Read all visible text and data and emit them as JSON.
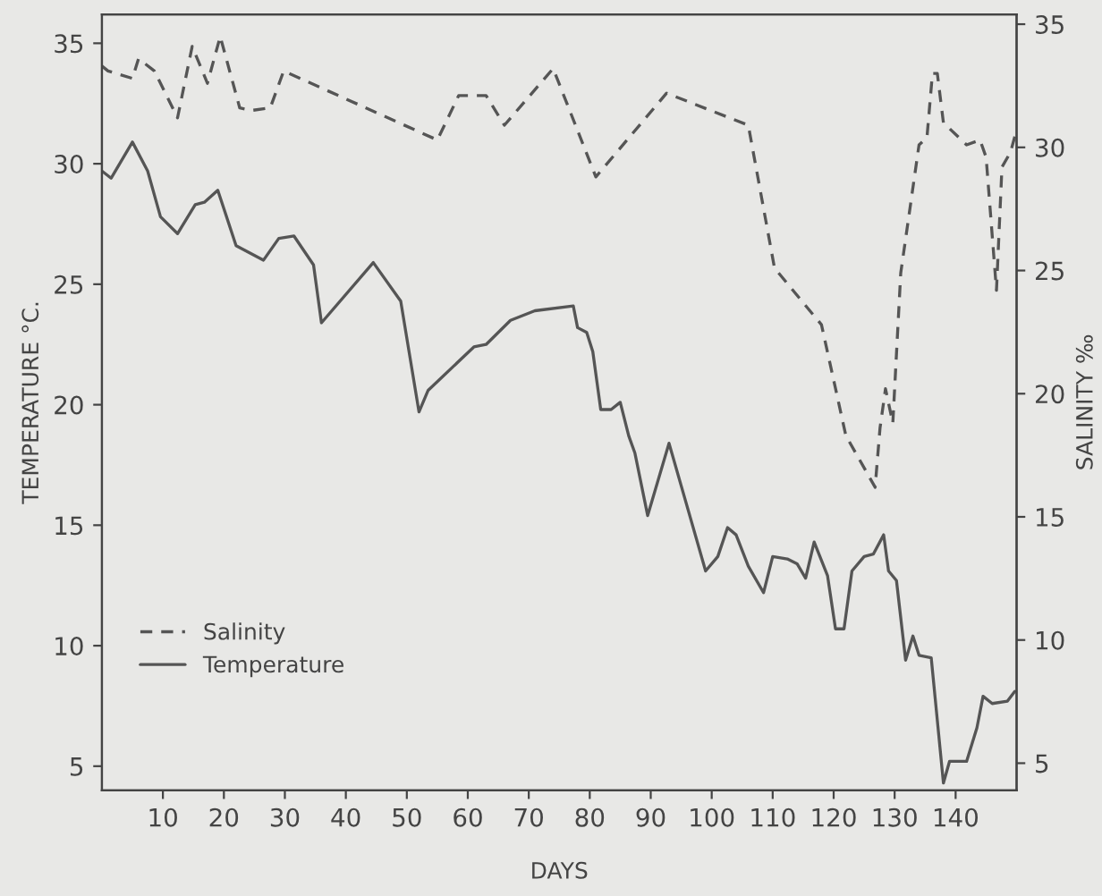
{
  "chart_data": {
    "type": "line",
    "xlabel": "DAYS",
    "ylabel": "TEMPERATURE °C.",
    "y2label": "SALINITY ‰",
    "xlim": [
      0,
      150
    ],
    "xticks": [
      10,
      20,
      30,
      40,
      50,
      60,
      70,
      80,
      90,
      100,
      110,
      120,
      130,
      140
    ],
    "ylim": [
      4,
      36.2
    ],
    "yticks": [
      5,
      10,
      15,
      20,
      25,
      30,
      35
    ],
    "y2lim": [
      3.9,
      35.4
    ],
    "y2ticks": [
      5,
      10,
      15,
      20,
      25,
      30,
      35
    ],
    "legend": "lower left",
    "grid": false,
    "series": [
      {
        "name": "Salinity",
        "color": "#555555",
        "line_style": "dashed",
        "axis": "y2",
        "x": [
          0,
          1,
          5,
          6,
          8.6,
          12.4,
          14.8,
          17.3,
          19.4,
          22.6,
          24.6,
          27.6,
          29.8,
          55,
          58.5,
          63,
          66,
          74,
          81,
          92.6,
          106,
          110.3,
          118,
          122,
          126.8,
          127.6,
          128.5,
          129.7,
          131,
          134,
          135.3,
          136.2,
          137,
          138,
          141.8,
          144,
          145,
          146.7,
          147.6,
          149,
          150
        ],
        "values": [
          33.3,
          33.1,
          32.8,
          33.6,
          33.1,
          31.2,
          34.1,
          32.6,
          34.5,
          31.6,
          31.5,
          31.6,
          33.1,
          30.3,
          32.1,
          32.1,
          30.9,
          33.2,
          28.8,
          32.2,
          30.9,
          25.1,
          22.8,
          18.3,
          16.2,
          18.6,
          20.2,
          18.8,
          24.9,
          30.1,
          30.4,
          33.0,
          33.0,
          31.0,
          30.1,
          30.3,
          29.6,
          24.2,
          29.2,
          29.8,
          30.7
        ]
      },
      {
        "name": "Temperature",
        "color": "#555555",
        "line_style": "solid",
        "axis": "y",
        "x": [
          0,
          1.5,
          5,
          7.5,
          9.6,
          12.4,
          15.3,
          16.8,
          19,
          22,
          26.5,
          29,
          31.5,
          34.7,
          36,
          44.5,
          49,
          52,
          53.5,
          61,
          63,
          67,
          71,
          77.3,
          78,
          79.5,
          80.5,
          81.8,
          83.5,
          85,
          86.4,
          87.4,
          89.5,
          93,
          99,
          101,
          102.6,
          104,
          106,
          108.5,
          110,
          112.4,
          114,
          115.4,
          116.8,
          119,
          120.3,
          121.7,
          123,
          125,
          126.5,
          128.2,
          129,
          130.3,
          131.8,
          133,
          134,
          136,
          138,
          139,
          141.8,
          143.5,
          144.5,
          146,
          148.5,
          149.7
        ],
        "values": [
          29.7,
          29.4,
          30.9,
          29.7,
          27.8,
          27.1,
          28.3,
          28.4,
          28.9,
          26.6,
          26.0,
          26.9,
          27.0,
          25.8,
          23.4,
          25.9,
          24.3,
          19.7,
          20.6,
          22.4,
          22.5,
          23.5,
          23.9,
          24.1,
          23.2,
          23.0,
          22.2,
          19.8,
          19.8,
          20.1,
          18.7,
          18.0,
          15.4,
          18.4,
          13.1,
          13.7,
          14.9,
          14.6,
          13.3,
          12.2,
          13.7,
          13.6,
          13.4,
          12.8,
          14.3,
          12.9,
          10.7,
          10.7,
          13.1,
          13.7,
          13.8,
          14.6,
          13.1,
          12.7,
          9.4,
          10.4,
          9.6,
          9.5,
          4.3,
          5.2,
          5.2,
          6.6,
          7.9,
          7.6,
          7.7,
          8.1
        ]
      }
    ]
  }
}
